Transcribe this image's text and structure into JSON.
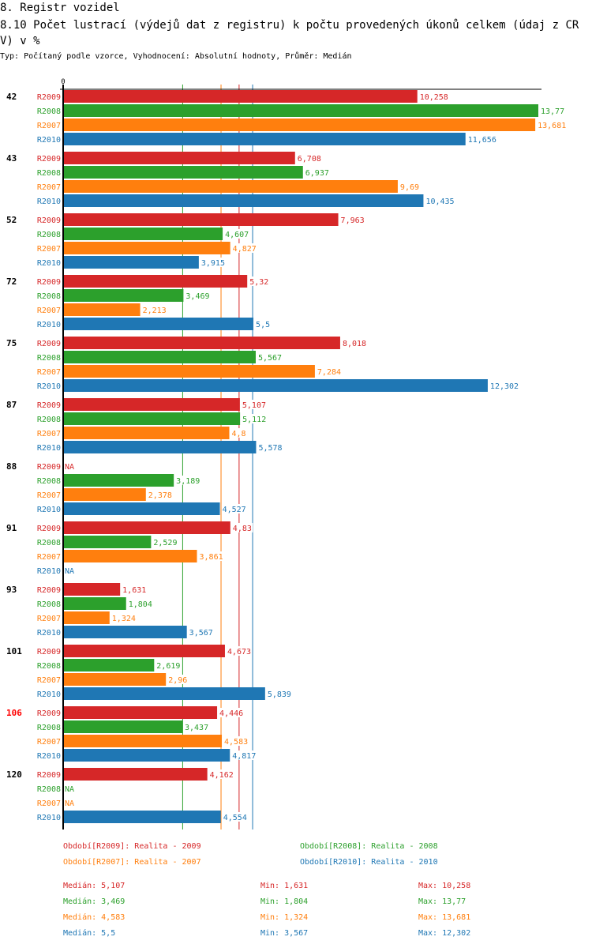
{
  "header": {
    "section": "8. Registr vozidel",
    "title": "8.10 Počet lustrací (výdejů dat z registru) k počtu provedených úkonů celkem (údaj z CRV) v %",
    "subtitle": "Typ: Počítaný podle vzorce, Vyhodnocení: Absolutní hodnoty, Průměr: Medián"
  },
  "colors": {
    "R2009": "#d62728",
    "R2008": "#2ca02c",
    "R2007": "#ff7f0e",
    "R2010": "#1f77b4",
    "highlight_group": "#ff0000"
  },
  "chart_data": {
    "type": "bar",
    "orientation": "horizontal",
    "title": "8.10 Počet lustrací (výdejů dat z registru) k počtu provedených úkonů celkem (údaj z CRV) v %",
    "xlabel": "",
    "ylabel": "",
    "axis_zero_label": "0",
    "xlim": [
      0,
      13.77
    ],
    "grid": false,
    "legend": "bottom",
    "categories": [
      "42",
      "43",
      "52",
      "72",
      "75",
      "87",
      "88",
      "91",
      "93",
      "101",
      "106",
      "120"
    ],
    "highlighted_category": "106",
    "series_order": [
      "R2009",
      "R2008",
      "R2007",
      "R2010"
    ],
    "series": [
      {
        "name": "R2009",
        "legend": "Období[R2009]: Realita - 2009",
        "values": [
          10.258,
          6.708,
          7.963,
          5.32,
          8.018,
          5.107,
          null,
          4.83,
          1.631,
          4.673,
          4.446,
          4.162
        ],
        "labels": [
          "10,258",
          "6,708",
          "7,963",
          "5,32",
          "8,018",
          "5,107",
          "NA",
          "4,83",
          "1,631",
          "4,673",
          "4,446",
          "4,162"
        ],
        "median": 5.107,
        "median_label": "Medián: 5,107",
        "min_label": "Min: 1,631",
        "max_label": "Max: 10,258"
      },
      {
        "name": "R2008",
        "legend": "Období[R2008]: Realita - 2008",
        "values": [
          13.77,
          6.937,
          4.607,
          3.469,
          5.567,
          5.112,
          3.189,
          2.529,
          1.804,
          2.619,
          3.437,
          null
        ],
        "labels": [
          "13,77",
          "6,937",
          "4,607",
          "3,469",
          "5,567",
          "5,112",
          "3,189",
          "2,529",
          "1,804",
          "2,619",
          "3,437",
          "NA"
        ],
        "median": 3.469,
        "median_label": "Medián: 3,469",
        "min_label": "Min: 1,804",
        "max_label": "Max: 13,77"
      },
      {
        "name": "R2007",
        "legend": "Období[R2007]: Realita - 2007",
        "values": [
          13.681,
          9.69,
          4.827,
          2.213,
          7.284,
          4.8,
          2.378,
          3.861,
          1.324,
          2.96,
          4.583,
          null
        ],
        "labels": [
          "13,681",
          "9,69",
          "4,827",
          "2,213",
          "7,284",
          "4,8",
          "2,378",
          "3,861",
          "1,324",
          "2,96",
          "4,583",
          "NA"
        ],
        "median": 4.583,
        "median_label": "Medián: 4,583",
        "min_label": "Min: 1,324",
        "max_label": "Max: 13,681"
      },
      {
        "name": "R2010",
        "legend": "Období[R2010]: Realita - 2010",
        "values": [
          11.656,
          10.435,
          3.915,
          5.5,
          12.302,
          5.578,
          4.527,
          null,
          3.567,
          5.839,
          4.817,
          4.554
        ],
        "labels": [
          "11,656",
          "10,435",
          "3,915",
          "5,5",
          "12,302",
          "5,578",
          "4,527",
          "NA",
          "3,567",
          "5,839",
          "4,817",
          "4,554"
        ],
        "median": 5.5,
        "median_label": "Medián: 5,5",
        "min_label": "Min: 3,567",
        "max_label": "Max: 12,302"
      }
    ]
  }
}
